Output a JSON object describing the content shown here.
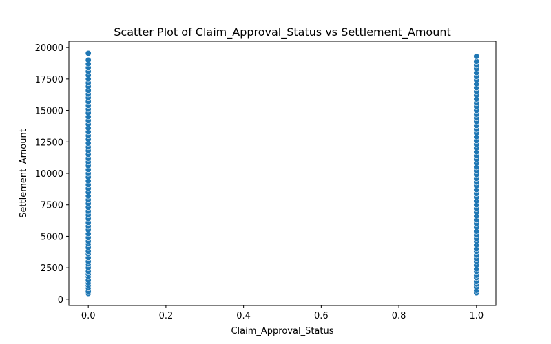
{
  "chart_data": {
    "type": "scatter",
    "title": "Scatter Plot of Claim_Approval_Status vs Settlement_Amount",
    "xlabel": "Claim_Approval_Status",
    "ylabel": "Settlement_Amount",
    "xlim": [
      -0.05,
      1.05
    ],
    "ylim": [
      -500,
      20500
    ],
    "xticks": [
      0.0,
      0.2,
      0.4,
      0.6,
      0.8,
      1.0
    ],
    "xtick_labels": [
      "0.0",
      "0.2",
      "0.4",
      "0.6",
      "0.8",
      "1.0"
    ],
    "yticks": [
      0,
      2500,
      5000,
      7500,
      10000,
      12500,
      15000,
      17500,
      20000
    ],
    "ytick_labels": [
      "0",
      "2500",
      "5000",
      "7500",
      "10000",
      "12500",
      "15000",
      "17500",
      "20000"
    ],
    "grid": false,
    "marker_color": "#1f77b4",
    "series": [
      {
        "x": 0.0,
        "y": [
          450,
          600,
          900,
          1100,
          1300,
          1500,
          1800,
          2000,
          2200,
          2500,
          2800,
          3000,
          3300,
          3600,
          3800,
          4100,
          4400,
          4600,
          4900,
          5200,
          5500,
          5800,
          6100,
          6400,
          6700,
          7000,
          7300,
          7600,
          7900,
          8200,
          8500,
          8800,
          9100,
          9400,
          9700,
          10000,
          10300,
          10600,
          10900,
          11200,
          11500,
          11800,
          12100,
          12400,
          12700,
          13000,
          13300,
          13600,
          13900,
          14200,
          14500,
          14800,
          15100,
          15400,
          15700,
          16000,
          16300,
          16600,
          16900,
          17200,
          17500,
          17800,
          18100,
          18400,
          18700,
          19000,
          19550
        ]
      },
      {
        "x": 1.0,
        "y": [
          500,
          700,
          950,
          1200,
          1400,
          1700,
          1900,
          2200,
          2400,
          2700,
          3000,
          3200,
          3500,
          3800,
          4000,
          4300,
          4600,
          4800,
          5100,
          5400,
          5700,
          6000,
          6300,
          6600,
          6900,
          7200,
          7500,
          7800,
          8100,
          8400,
          8700,
          9000,
          9300,
          9600,
          9900,
          10200,
          10500,
          10800,
          11100,
          11400,
          11700,
          12000,
          12300,
          12600,
          12900,
          13200,
          13500,
          13800,
          14100,
          14400,
          14700,
          15000,
          15300,
          15600,
          15900,
          16200,
          16500,
          16800,
          17100,
          17400,
          17700,
          18000,
          18300,
          18600,
          18900,
          19300
        ]
      }
    ]
  }
}
